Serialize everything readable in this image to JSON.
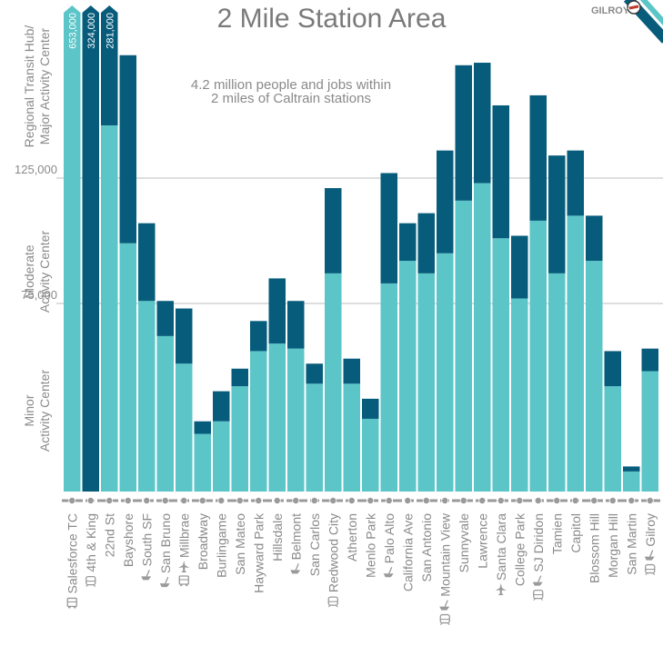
{
  "chart_data": {
    "type": "bar",
    "title": "2 Mile Station Area",
    "annotation": [
      "4.2 million people and jobs within",
      "2 miles of Caltrain stations"
    ],
    "ytick_labels": [
      "75,000",
      "125,000"
    ],
    "ytick_values": [
      75000,
      125000
    ],
    "ylim": [
      0,
      194000
    ],
    "tier_labels": [
      [
        "Regional Transit Hub/",
        "Major Activity Center"
      ],
      [
        "Moderate",
        "Activity Center"
      ],
      [
        "Minor",
        "Activity Center"
      ]
    ],
    "corner_label": "GILROY",
    "categories": [
      "Salesforce TC",
      "4th & King",
      "22nd St",
      "Bayshore",
      "South SF",
      "San Bruno",
      "Millbrae",
      "Broadway",
      "Burlingame",
      "San Mateo",
      "Hayward Park",
      "Hillsdale",
      "Belmont",
      "San Carlos",
      "Redwood City",
      "Atherton",
      "Menlo Park",
      "Palo Alto",
      "California Ave",
      "San Antonio",
      "Mountain View",
      "Sunnyvale",
      "Lawrence",
      "Santa Clara",
      "College Park",
      "SJ Diridon",
      "Tamien",
      "Capitol",
      "Blossom Hill",
      "Morgan Hill",
      "San Martin",
      "Gilroy"
    ],
    "category_icons": [
      [
        "bus-icon"
      ],
      [
        "train-icon"
      ],
      [],
      [],
      [
        "ferry-icon"
      ],
      [
        "ferry-icon"
      ],
      [
        "airport-icon",
        "bus-icon"
      ],
      [],
      [],
      [],
      [],
      [],
      [
        "ferry-icon"
      ],
      [],
      [
        "train-icon"
      ],
      [],
      [],
      [
        "ferry-icon"
      ],
      [],
      [],
      [
        "ferry-icon",
        "train-icon"
      ],
      [],
      [],
      [
        "airport-icon"
      ],
      [],
      [
        "ferry-icon",
        "train-icon"
      ],
      [],
      [],
      [],
      [],
      [],
      [
        "ferry-icon",
        "train-icon"
      ]
    ],
    "series": [
      {
        "name": "",
        "color": "#5bc5c8",
        "values": [
          null,
          null,
          null,
          99000,
          76000,
          62000,
          51000,
          23000,
          28000,
          42000,
          56000,
          59000,
          57000,
          43000,
          87000,
          43000,
          29000,
          83000,
          92000,
          87000,
          95000,
          116000,
          123000,
          101000,
          77000,
          108000,
          87000,
          110000,
          92000,
          42000,
          8000,
          48000
        ]
      },
      {
        "name": "",
        "color": "#075c7b",
        "values": [
          null,
          null,
          null,
          75000,
          31000,
          14000,
          22000,
          5000,
          12000,
          7000,
          12000,
          26000,
          19000,
          8000,
          34000,
          10000,
          8000,
          44000,
          15000,
          24000,
          41000,
          54000,
          48000,
          53000,
          25000,
          50000,
          47000,
          26000,
          18000,
          14000,
          2000,
          9000
        ]
      }
    ],
    "overflow_bars": [
      {
        "category": "Salesforce TC",
        "label": "653,000",
        "color": "#5bc5c8"
      },
      {
        "category": "4th & King",
        "label": "324,000",
        "color": "#075c7b"
      },
      {
        "category": "22nd St",
        "label": "281,000",
        "color": "#075c7b",
        "lower_value": 146000,
        "lower_color": "#5bc5c8"
      }
    ],
    "colors": {
      "light": "#5bc5c8",
      "dark": "#075c7b",
      "grid": "#bdbdbd",
      "text": "#8a8a8a",
      "rail": "#9a9a9a"
    }
  }
}
